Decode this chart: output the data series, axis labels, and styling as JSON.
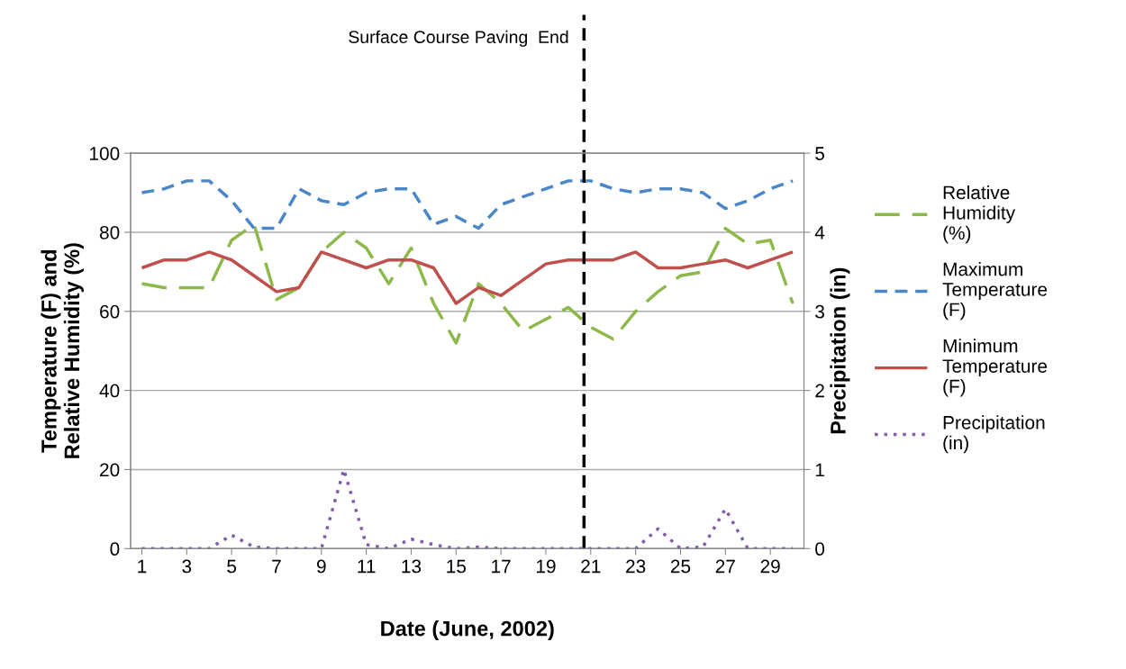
{
  "chart_data": {
    "type": "line",
    "xlabel": "Date (June, 2002)",
    "ylabel": "Temperature (F) and\nRelative Humidity (%)",
    "y2label": "Precipitation (in)",
    "x": [
      1,
      2,
      3,
      4,
      5,
      6,
      7,
      8,
      9,
      10,
      11,
      12,
      13,
      14,
      15,
      16,
      17,
      18,
      19,
      20,
      21,
      22,
      23,
      24,
      25,
      26,
      27,
      28,
      29,
      30
    ],
    "xlim": [
      0.5,
      30.5
    ],
    "xticks": [
      1,
      3,
      5,
      7,
      9,
      11,
      13,
      15,
      17,
      19,
      21,
      23,
      25,
      27,
      29
    ],
    "ylim": [
      0,
      100
    ],
    "yticks": [
      0,
      20,
      40,
      60,
      80,
      100
    ],
    "y2lim": [
      0,
      5
    ],
    "y2ticks": [
      0,
      1,
      2,
      3,
      4,
      5
    ],
    "grid": "y",
    "legend": "right",
    "marker": "none",
    "series": [
      {
        "name": "Relative Humidity (%)",
        "color": "#8db84a",
        "line_style": "longdash",
        "values": [
          67,
          66,
          66,
          66,
          78,
          82,
          63,
          66,
          75,
          80,
          76,
          67,
          76,
          62,
          52,
          67,
          62,
          55,
          58,
          61,
          56,
          53,
          60,
          65,
          69,
          70,
          81,
          77,
          78,
          62
        ]
      },
      {
        "name": "Maximum Temperature (F)",
        "color": "#4a86c8",
        "line_style": "dashed",
        "values": [
          90,
          91,
          93,
          93,
          88,
          81,
          81,
          91,
          88,
          87,
          90,
          91,
          91,
          82,
          84,
          81,
          87,
          89,
          91,
          93,
          93,
          91,
          90,
          91,
          91,
          90,
          86,
          88,
          91,
          93
        ]
      },
      {
        "name": "Minimum Temperature (F)",
        "color": "#c0504d",
        "line_style": "solid",
        "values": [
          71,
          73,
          73,
          75,
          73,
          69,
          65,
          66,
          75,
          73,
          71,
          73,
          73,
          71,
          62,
          66,
          64,
          68,
          72,
          73,
          73,
          73,
          75,
          71,
          71,
          72,
          73,
          71,
          73,
          75
        ]
      },
      {
        "name": "Precipitation (in)",
        "color": "#7f5fa8",
        "line_style": "dotted",
        "axis": "y2",
        "values": [
          0,
          0,
          0,
          0,
          0.17,
          0.02,
          0,
          0,
          0,
          1.0,
          0.05,
          0,
          0.12,
          0.05,
          0,
          0.02,
          0,
          0,
          0,
          0,
          0,
          0,
          0,
          0.25,
          0,
          0.02,
          0.5,
          0,
          0,
          0
        ]
      }
    ],
    "ref_lines": [
      {
        "axis": "x",
        "value": 20.7,
        "label": "Surface Course Paving  End",
        "color": "#000000",
        "line_style": "dashed"
      }
    ]
  }
}
